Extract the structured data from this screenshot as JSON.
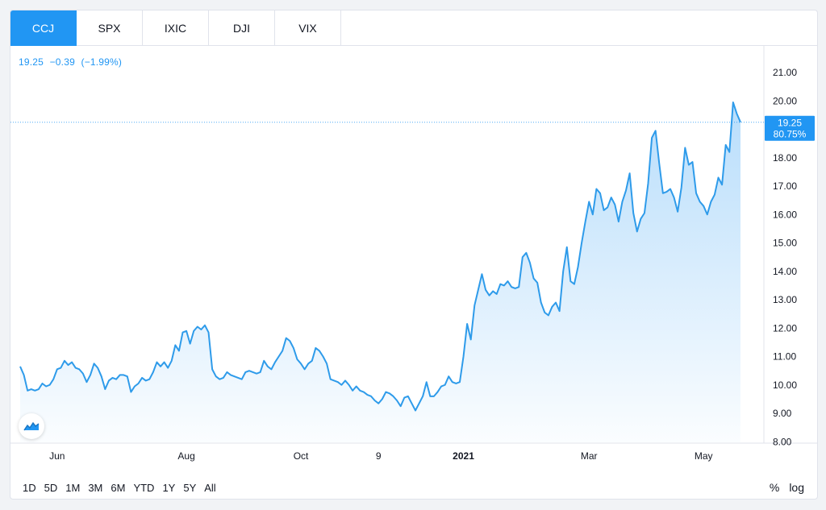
{
  "tabs": [
    {
      "label": "CCJ",
      "active": true
    },
    {
      "label": "SPX",
      "active": false
    },
    {
      "label": "IXIC",
      "active": false
    },
    {
      "label": "DJI",
      "active": false
    },
    {
      "label": "VIX",
      "active": false
    }
  ],
  "legend": {
    "price": "19.25",
    "change": "−0.39",
    "change_pct": "(−1.99%)"
  },
  "last_label": {
    "price": "19.25",
    "percent": "80.75%"
  },
  "ranges": [
    "1D",
    "5D",
    "1M",
    "3M",
    "6M",
    "YTD",
    "1Y",
    "5Y",
    "All"
  ],
  "scale_buttons": {
    "percent": "%",
    "log": "log"
  },
  "colors": {
    "accent": "#2196f3",
    "line": "#2e9bea",
    "text": "#131722",
    "axis_text": "#131722"
  },
  "logo_icon": "tradingview-logo-icon",
  "chart_data": {
    "type": "area",
    "symbol": "CCJ",
    "ylim": [
      8.0,
      21.5
    ],
    "yticks": [
      "21.00",
      "20.00",
      "19.00",
      "18.00",
      "17.00",
      "16.00",
      "15.00",
      "14.00",
      "13.00",
      "12.00",
      "11.00",
      "10.00",
      "9.00",
      "8.00"
    ],
    "xticks": [
      {
        "label": "Jun",
        "index": 10,
        "bold": false
      },
      {
        "label": "Aug",
        "index": 45,
        "bold": false
      },
      {
        "label": "Oct",
        "index": 76,
        "bold": false
      },
      {
        "label": "9",
        "index": 97,
        "bold": false
      },
      {
        "label": "2021",
        "index": 120,
        "bold": true
      },
      {
        "label": "Mar",
        "index": 154,
        "bold": false
      },
      {
        "label": "May",
        "index": 185,
        "bold": false
      }
    ],
    "grid": false,
    "values": [
      10.65,
      10.35,
      9.8,
      9.85,
      9.8,
      9.85,
      10.05,
      9.95,
      10.0,
      10.2,
      10.55,
      10.6,
      10.85,
      10.7,
      10.8,
      10.6,
      10.55,
      10.4,
      10.1,
      10.35,
      10.75,
      10.6,
      10.3,
      9.85,
      10.15,
      10.25,
      10.2,
      10.35,
      10.35,
      10.3,
      9.75,
      9.95,
      10.05,
      10.25,
      10.15,
      10.2,
      10.45,
      10.8,
      10.65,
      10.8,
      10.6,
      10.85,
      11.4,
      11.2,
      11.85,
      11.9,
      11.45,
      11.9,
      12.05,
      11.95,
      12.1,
      11.85,
      10.55,
      10.3,
      10.2,
      10.25,
      10.45,
      10.35,
      10.3,
      10.25,
      10.2,
      10.45,
      10.5,
      10.45,
      10.4,
      10.45,
      10.85,
      10.65,
      10.55,
      10.8,
      11.0,
      11.2,
      11.65,
      11.55,
      11.3,
      10.9,
      10.75,
      10.55,
      10.75,
      10.85,
      11.3,
      11.2,
      11.0,
      10.75,
      10.2,
      10.15,
      10.1,
      10.0,
      10.15,
      10.0,
      9.8,
      9.95,
      9.8,
      9.75,
      9.65,
      9.6,
      9.45,
      9.35,
      9.5,
      9.75,
      9.7,
      9.6,
      9.45,
      9.25,
      9.55,
      9.6,
      9.35,
      9.1,
      9.35,
      9.6,
      10.1,
      9.6,
      9.6,
      9.75,
      9.95,
      10.0,
      10.3,
      10.1,
      10.05,
      10.1,
      11.0,
      12.15,
      11.6,
      12.8,
      13.35,
      13.9,
      13.35,
      13.15,
      13.3,
      13.2,
      13.55,
      13.5,
      13.65,
      13.45,
      13.4,
      13.45,
      14.5,
      14.65,
      14.3,
      13.75,
      13.6,
      12.9,
      12.55,
      12.45,
      12.75,
      12.9,
      12.6,
      14.0,
      14.85,
      13.65,
      13.55,
      14.15,
      15.0,
      15.75,
      16.45,
      16.0,
      16.9,
      16.75,
      16.15,
      16.25,
      16.6,
      16.35,
      15.75,
      16.45,
      16.85,
      17.45,
      16.05,
      15.4,
      15.85,
      16.05,
      17.1,
      18.7,
      18.95,
      17.8,
      16.75,
      16.8,
      16.9,
      16.6,
      16.1,
      16.95,
      18.35,
      17.75,
      17.85,
      16.75,
      16.45,
      16.3,
      16.0,
      16.45,
      16.7,
      17.3,
      17.05,
      18.45,
      18.2,
      19.95,
      19.55,
      19.25
    ]
  }
}
